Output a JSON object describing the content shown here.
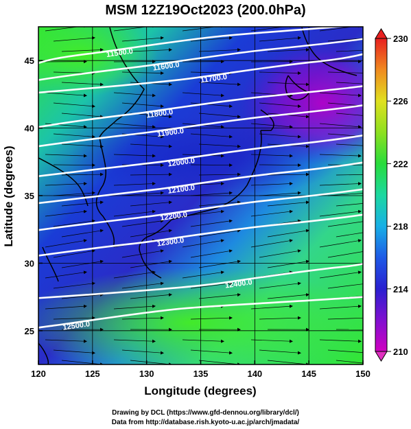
{
  "title": "MSM 12Z19Oct2023 (200.0hPa)",
  "map": {
    "xlabel": "Longitude (degrees)",
    "ylabel": "Latitude  (degrees)",
    "x_ticks": [
      "120",
      "125",
      "130",
      "135",
      "140",
      "145",
      "150"
    ],
    "x_tick_values": [
      120,
      125,
      130,
      135,
      140,
      145,
      150
    ],
    "y_ticks": [
      "25",
      "30",
      "35",
      "40",
      "45"
    ],
    "y_tick_values": [
      25,
      30,
      35,
      40,
      45
    ],
    "lon_range": [
      120,
      150
    ],
    "lat_range": [
      22.5,
      47.5
    ],
    "contour_unit_note": "geopotential height (m)",
    "contours": [
      {
        "label": "11500.0",
        "label_lon": 127.5,
        "label_lat": 45.6
      },
      {
        "label": "11600.0",
        "label_lon": 131.8,
        "label_lat": 44.6
      },
      {
        "label": "11700.0",
        "label_lon": 136.2,
        "label_lat": 43.7
      },
      {
        "label": "11800.0",
        "label_lon": 131.2,
        "label_lat": 41.1
      },
      {
        "label": "11900.0",
        "label_lon": 132.2,
        "label_lat": 39.7
      },
      {
        "label": "12000.0",
        "label_lon": 133.2,
        "label_lat": 37.5
      },
      {
        "label": "12100.0",
        "label_lon": 133.2,
        "label_lat": 35.5
      },
      {
        "label": "12200.0",
        "label_lon": 132.5,
        "label_lat": 33.5
      },
      {
        "label": "12300.0",
        "label_lon": 132.2,
        "label_lat": 31.6
      },
      {
        "label": "12400.0",
        "label_lon": 138.5,
        "label_lat": 28.5
      },
      {
        "label": "12500.0",
        "label_lon": 123.5,
        "label_lat": 25.4
      }
    ]
  },
  "colorbar": {
    "ticks": [
      "210",
      "214",
      "218",
      "222",
      "226",
      "230"
    ],
    "tick_values": [
      210,
      214,
      218,
      222,
      226,
      230
    ],
    "range": [
      210,
      230
    ]
  },
  "footer": {
    "line1": "Drawing by DCL (https://www.gfd-dennou.org/library/dcl/)",
    "line2": "Data from http://database.rish.kyoto-u.ac.jp/arch/jmadata/"
  }
}
